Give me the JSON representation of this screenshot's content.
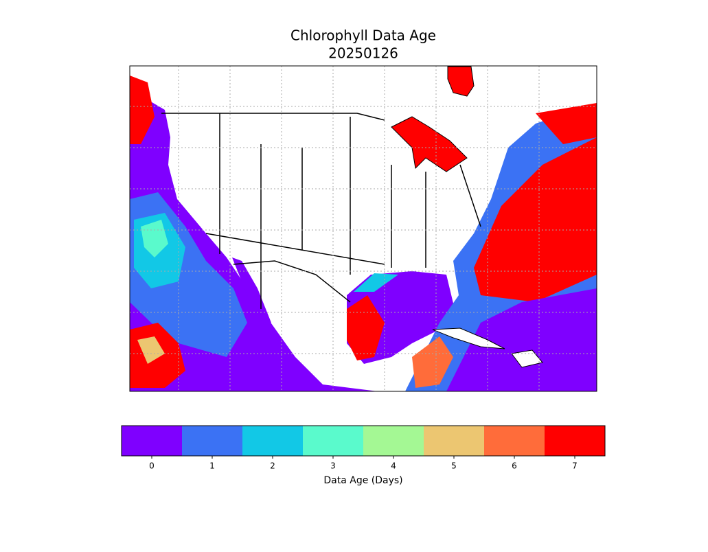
{
  "title": "Chlorophyll Data Age",
  "subtitle": "20250126",
  "colorbar": {
    "label": "Data Age (Days)",
    "lim": [
      -0.5,
      7.5
    ],
    "ticks": [
      0,
      1,
      2,
      3,
      4,
      5,
      6,
      7
    ],
    "colors": [
      "#7f00ff",
      "#3b72f4",
      "#12c8e6",
      "#5afacc",
      "#a4f894",
      "#ecc671",
      "#ff6c3a",
      "#ff0000"
    ]
  }
}
